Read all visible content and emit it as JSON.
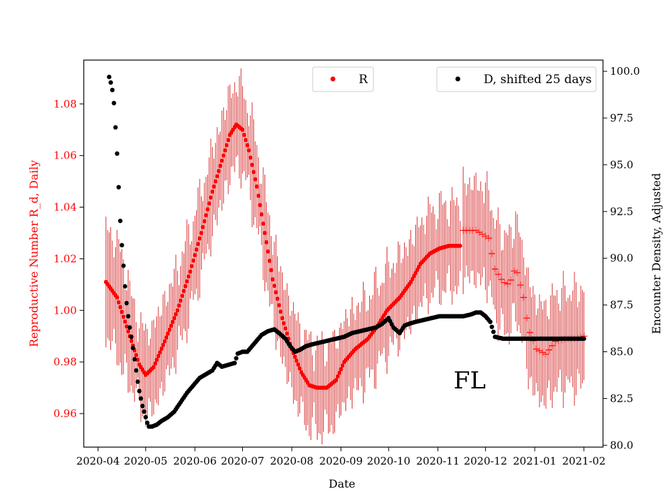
{
  "chart_data": {
    "type": "scatter",
    "title": "",
    "annotation": "FL",
    "xlabel": "Date",
    "ylabel_left": "Reproductive Number R_d, Daily",
    "ylabel_right": "Encounter Density, Adjusted",
    "x_range_days": [
      -9,
      318
    ],
    "x_ticks": [
      {
        "day": 0,
        "label": "2020-04"
      },
      {
        "day": 30,
        "label": "2020-05"
      },
      {
        "day": 61,
        "label": "2020-06"
      },
      {
        "day": 91,
        "label": "2020-07"
      },
      {
        "day": 122,
        "label": "2020-08"
      },
      {
        "day": 153,
        "label": "2020-09"
      },
      {
        "day": 183,
        "label": "2020-10"
      },
      {
        "day": 214,
        "label": "2020-11"
      },
      {
        "day": 244,
        "label": "2020-12"
      },
      {
        "day": 275,
        "label": "2021-01"
      },
      {
        "day": 306,
        "label": "2021-02"
      }
    ],
    "ylim_left": [
      0.947,
      1.097
    ],
    "yticks_left": [
      "0.96",
      "0.98",
      "1.00",
      "1.02",
      "1.04",
      "1.06",
      "1.08"
    ],
    "ylim_right": [
      79.9,
      100.6
    ],
    "yticks_right": [
      "80.0",
      "82.5",
      "85.0",
      "87.5",
      "90.0",
      "92.5",
      "95.0",
      "97.5",
      "100.0"
    ],
    "legend": [
      {
        "label": "R",
        "color": "#ff0000",
        "position": "upper-center"
      },
      {
        "label": "D, shifted 25 days",
        "color": "#000000",
        "position": "upper-right"
      }
    ],
    "series": [
      {
        "name": "R",
        "axis": "left",
        "color": "#ff0000",
        "points_dot": [
          [
            5,
            1.011
          ],
          [
            12,
            1.005
          ],
          [
            20,
            0.99
          ],
          [
            26,
            0.979
          ],
          [
            30,
            0.975
          ],
          [
            35,
            0.978
          ],
          [
            42,
            0.988
          ],
          [
            50,
            1.0
          ],
          [
            58,
            1.015
          ],
          [
            65,
            1.03
          ],
          [
            72,
            1.046
          ],
          [
            78,
            1.058
          ],
          [
            83,
            1.068
          ],
          [
            87,
            1.072
          ],
          [
            91,
            1.07
          ],
          [
            95,
            1.062
          ],
          [
            100,
            1.048
          ],
          [
            105,
            1.03
          ],
          [
            110,
            1.012
          ],
          [
            116,
            0.997
          ],
          [
            122,
            0.985
          ],
          [
            128,
            0.976
          ],
          [
            133,
            0.971
          ],
          [
            138,
            0.97
          ],
          [
            144,
            0.97
          ],
          [
            150,
            0.973
          ],
          [
            155,
            0.98
          ],
          [
            162,
            0.985
          ],
          [
            170,
            0.989
          ],
          [
            176,
            0.994
          ],
          [
            182,
            1.0
          ],
          [
            190,
            1.005
          ],
          [
            197,
            1.011
          ],
          [
            203,
            1.018
          ],
          [
            209,
            1.022
          ],
          [
            215,
            1.024
          ],
          [
            221,
            1.025
          ],
          [
            228,
            1.025
          ]
        ],
        "points_plus": [
          [
            230,
            1.031
          ],
          [
            238,
            1.031
          ],
          [
            246,
            1.028
          ],
          [
            250,
            1.016
          ],
          [
            255,
            1.011
          ],
          [
            259,
            1.01
          ],
          [
            263,
            1.017
          ],
          [
            268,
            1.005
          ],
          [
            271,
            0.993
          ],
          [
            276,
            0.985
          ],
          [
            282,
            0.983
          ],
          [
            288,
            0.988
          ],
          [
            295,
            0.989
          ],
          [
            301,
            0.989
          ],
          [
            306,
            0.99
          ]
        ],
        "error_halfwidth": 0.018
      },
      {
        "name": "D, shifted 25 days",
        "axis": "right",
        "color": "#000000",
        "points": [
          [
            7,
            99.7
          ],
          [
            8,
            99.4
          ],
          [
            9,
            99.0
          ],
          [
            10,
            98.3
          ],
          [
            11,
            97.0
          ],
          [
            12,
            95.6
          ],
          [
            13,
            93.8
          ],
          [
            14,
            92.0
          ],
          [
            15,
            90.7
          ],
          [
            16,
            89.6
          ],
          [
            17,
            88.5
          ],
          [
            18,
            87.6
          ],
          [
            19,
            86.9
          ],
          [
            20,
            86.3
          ],
          [
            21,
            85.8
          ],
          [
            22,
            85.2
          ],
          [
            23,
            84.6
          ],
          [
            24,
            84.0
          ],
          [
            25,
            83.4
          ],
          [
            26,
            82.9
          ],
          [
            27,
            82.5
          ],
          [
            28,
            82.1
          ],
          [
            29,
            81.8
          ],
          [
            30,
            81.5
          ],
          [
            31,
            81.2
          ],
          [
            32,
            81.0
          ],
          [
            34,
            81.0
          ],
          [
            37,
            81.1
          ],
          [
            40,
            81.3
          ],
          [
            44,
            81.5
          ],
          [
            48,
            81.8
          ],
          [
            52,
            82.3
          ],
          [
            56,
            82.8
          ],
          [
            60,
            83.2
          ],
          [
            64,
            83.6
          ],
          [
            68,
            83.8
          ],
          [
            72,
            84.0
          ],
          [
            75,
            84.4
          ],
          [
            78,
            84.2
          ],
          [
            82,
            84.3
          ],
          [
            86,
            84.4
          ],
          [
            88,
            84.9
          ],
          [
            91,
            85.0
          ],
          [
            94,
            85.0
          ],
          [
            97,
            85.3
          ],
          [
            100,
            85.6
          ],
          [
            103,
            85.9
          ],
          [
            107,
            86.1
          ],
          [
            111,
            86.2
          ],
          [
            114,
            86.0
          ],
          [
            118,
            85.7
          ],
          [
            121,
            85.3
          ],
          [
            124,
            85.0
          ],
          [
            127,
            85.1
          ],
          [
            131,
            85.3
          ],
          [
            135,
            85.4
          ],
          [
            140,
            85.5
          ],
          [
            145,
            85.6
          ],
          [
            150,
            85.7
          ],
          [
            155,
            85.8
          ],
          [
            160,
            86.0
          ],
          [
            165,
            86.1
          ],
          [
            170,
            86.2
          ],
          [
            175,
            86.3
          ],
          [
            179,
            86.5
          ],
          [
            183,
            86.8
          ],
          [
            186,
            86.3
          ],
          [
            190,
            86.0
          ],
          [
            193,
            86.4
          ],
          [
            196,
            86.5
          ],
          [
            200,
            86.6
          ],
          [
            205,
            86.7
          ],
          [
            210,
            86.8
          ],
          [
            215,
            86.9
          ],
          [
            220,
            86.9
          ],
          [
            225,
            86.9
          ],
          [
            230,
            86.9
          ],
          [
            235,
            87.0
          ],
          [
            238,
            87.1
          ],
          [
            241,
            87.1
          ],
          [
            244,
            86.9
          ],
          [
            247,
            86.6
          ],
          [
            250,
            85.8
          ],
          [
            255,
            85.7
          ],
          [
            262,
            85.7
          ],
          [
            270,
            85.7
          ],
          [
            280,
            85.7
          ],
          [
            290,
            85.7
          ],
          [
            300,
            85.7
          ],
          [
            306,
            85.7
          ]
        ]
      }
    ]
  }
}
